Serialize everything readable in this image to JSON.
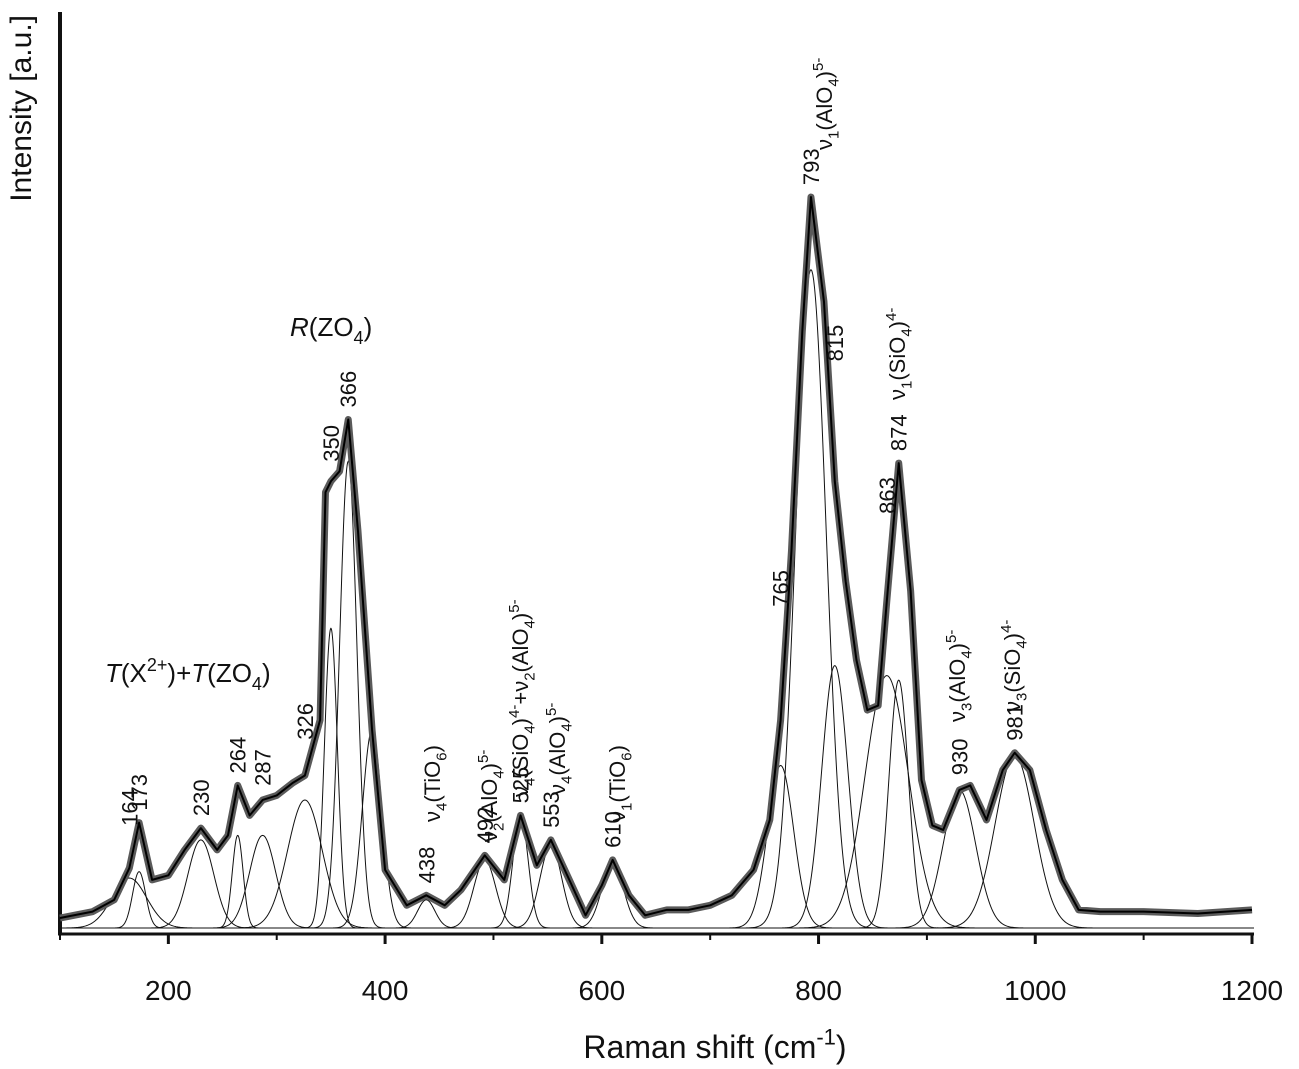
{
  "chart_data": {
    "type": "line",
    "x_label": {
      "runs": [
        {
          "t": "Raman shift (cm"
        },
        {
          "t": "-1",
          "s": "sup"
        },
        {
          "t": ")"
        }
      ]
    },
    "y_label": "Intensity [a.u.]",
    "xlim": [
      100,
      1200
    ],
    "ylim": [
      0,
      100
    ],
    "xticks": [
      200,
      400,
      600,
      800,
      1000,
      1200
    ],
    "xminorticks": [
      100,
      300,
      500,
      700,
      900,
      1100
    ],
    "x": [
      100,
      130,
      150,
      164,
      173,
      185,
      200,
      215,
      230,
      245,
      255,
      264,
      275,
      287,
      300,
      315,
      326,
      340,
      345,
      350,
      358,
      366,
      375,
      388,
      400,
      420,
      438,
      455,
      470,
      492,
      510,
      525,
      540,
      553,
      570,
      585,
      600,
      610,
      625,
      640,
      660,
      680,
      700,
      720,
      740,
      755,
      765,
      775,
      785,
      793,
      805,
      815,
      825,
      835,
      845,
      855,
      863,
      874,
      885,
      895,
      905,
      915,
      930,
      940,
      955,
      970,
      981,
      995,
      1010,
      1025,
      1040,
      1060,
      1100,
      1150,
      1200
    ],
    "series": [
      {
        "color": "#5a5a5a",
        "values": [
          1.1,
          1.8,
          3.1,
          6.6,
          11.6,
          5.3,
          5.8,
          8.6,
          11,
          8.6,
          10.2,
          15.7,
          12.4,
          14.1,
          14.6,
          16,
          16.8,
          22.9,
          48,
          49.2,
          50.3,
          56,
          43.7,
          21.8,
          6.4,
          2.5,
          3.6,
          2.5,
          4.2,
          8,
          5.3,
          12.4,
          6.9,
          9.7,
          5.3,
          1.4,
          4.7,
          7.5,
          3.6,
          1.4,
          2,
          2,
          2.5,
          3.6,
          6.4,
          11.9,
          22.9,
          41.5,
          65.7,
          80.5,
          69,
          49.2,
          38.2,
          29.5,
          24,
          24.5,
          36,
          51.2,
          37.1,
          16.3,
          11.3,
          10.8,
          15.2,
          15.7,
          11.9,
          17.4,
          19.3,
          17.4,
          10.8,
          5.3,
          2,
          1.8,
          1.8,
          1.6,
          2
        ]
      }
    ],
    "components": [
      {
        "position": 164,
        "height": 5.5,
        "width": 16
      },
      {
        "position": 173,
        "height": 6.2,
        "width": 6
      },
      {
        "position": 230,
        "height": 9.7,
        "width": 12
      },
      {
        "position": 264,
        "height": 10.2,
        "width": 5
      },
      {
        "position": 287,
        "height": 10.2,
        "width": 12
      },
      {
        "position": 326,
        "height": 14.1,
        "width": 16
      },
      {
        "position": 350,
        "height": 33,
        "width": 6
      },
      {
        "position": 366,
        "height": 51.4,
        "width": 8
      },
      {
        "position": 388,
        "height": 21.8,
        "width": 9,
        "labeled": false
      },
      {
        "position": 438,
        "height": 3.1,
        "width": 8
      },
      {
        "position": 492,
        "height": 7.5,
        "width": 10
      },
      {
        "position": 525,
        "height": 12.4,
        "width": 7
      },
      {
        "position": 553,
        "height": 9.1,
        "width": 10
      },
      {
        "position": 610,
        "height": 7.1,
        "width": 10
      },
      {
        "position": 765,
        "height": 17.9,
        "width": 12
      },
      {
        "position": 793,
        "height": 72.5,
        "width": 14
      },
      {
        "position": 815,
        "height": 28.9,
        "width": 12
      },
      {
        "position": 863,
        "height": 27.8,
        "width": 20
      },
      {
        "position": 874,
        "height": 27.3,
        "width": 9
      },
      {
        "position": 930,
        "height": 15.2,
        "width": 15
      },
      {
        "position": 981,
        "height": 19,
        "width": 18
      }
    ],
    "annotations": [
      {
        "runs": [
          {
            "t": "T",
            "s": "i"
          },
          {
            "t": "(X"
          },
          {
            "t": "2+",
            "s": "sup"
          },
          {
            "t": ")+"
          },
          {
            "t": "T",
            "s": "i"
          },
          {
            "t": "(ZO"
          },
          {
            "t": "4",
            "s": "sub"
          },
          {
            "t": ")"
          }
        ]
      },
      {
        "runs": [
          {
            "t": "R",
            "s": "i"
          },
          {
            "t": "(ZO"
          },
          {
            "t": "4",
            "s": "sub"
          },
          {
            "t": ")"
          }
        ]
      },
      {
        "runs": [
          {
            "t": "ν"
          },
          {
            "t": "4",
            "s": "sub"
          },
          {
            "t": "(TiO"
          },
          {
            "t": "6",
            "s": "sub"
          },
          {
            "t": ")"
          }
        ]
      },
      {
        "runs": [
          {
            "t": "ν"
          },
          {
            "t": "2",
            "s": "sub"
          },
          {
            "t": "(AlO"
          },
          {
            "t": "4",
            "s": "sub"
          },
          {
            "t": ")"
          },
          {
            "t": "5-",
            "s": "sup"
          }
        ]
      },
      {
        "runs": [
          {
            "t": "ν"
          },
          {
            "t": "4",
            "s": "sub"
          },
          {
            "t": "(SiO"
          },
          {
            "t": "4",
            "s": "sub"
          },
          {
            "t": ")"
          },
          {
            "t": "4-",
            "s": "sup"
          },
          {
            "t": "+ν"
          },
          {
            "t": "2",
            "s": "sub"
          },
          {
            "t": "(AlO"
          },
          {
            "t": "4",
            "s": "sub"
          },
          {
            "t": ")"
          },
          {
            "t": "5-",
            "s": "sup"
          }
        ]
      },
      {
        "runs": [
          {
            "t": "ν"
          },
          {
            "t": "4",
            "s": "sub"
          },
          {
            "t": "(AlO"
          },
          {
            "t": "4",
            "s": "sub"
          },
          {
            "t": ")"
          },
          {
            "t": "5-",
            "s": "sup"
          }
        ]
      },
      {
        "runs": [
          {
            "t": "ν"
          },
          {
            "t": "1",
            "s": "sub"
          },
          {
            "t": "(TiO"
          },
          {
            "t": "6",
            "s": "sub"
          },
          {
            "t": ")"
          }
        ]
      },
      {
        "runs": [
          {
            "t": "ν"
          },
          {
            "t": "1",
            "s": "sub"
          },
          {
            "t": "(AlO"
          },
          {
            "t": "4",
            "s": "sub"
          },
          {
            "t": ")"
          },
          {
            "t": "5-",
            "s": "sup"
          }
        ]
      },
      {
        "runs": [
          {
            "t": "ν"
          },
          {
            "t": "1",
            "s": "sub"
          },
          {
            "t": "(SiO"
          },
          {
            "t": "4",
            "s": "sub"
          },
          {
            "t": ")"
          },
          {
            "t": "4-",
            "s": "sup"
          }
        ]
      },
      {
        "runs": [
          {
            "t": "ν"
          },
          {
            "t": "3",
            "s": "sub"
          },
          {
            "t": "(AlO"
          },
          {
            "t": "4",
            "s": "sub"
          },
          {
            "t": ")"
          },
          {
            "t": "5-",
            "s": "sup"
          }
        ]
      },
      {
        "runs": [
          {
            "t": "ν"
          },
          {
            "t": "3",
            "s": "sub"
          },
          {
            "t": "(SiO"
          },
          {
            "t": "4",
            "s": "sub"
          },
          {
            "t": ")"
          },
          {
            "t": "4-",
            "s": "sup"
          }
        ]
      }
    ]
  }
}
